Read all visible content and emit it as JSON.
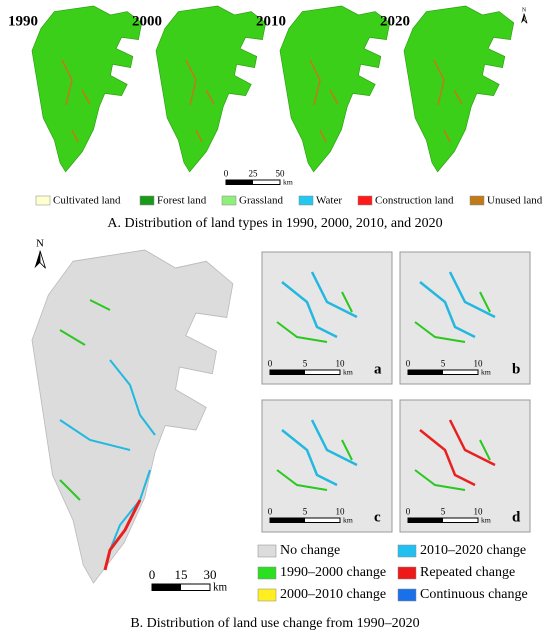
{
  "panel_a": {
    "years": [
      "1990",
      "2000",
      "2010",
      "2020"
    ],
    "north": "N",
    "scale": {
      "ticks": [
        0,
        25,
        50
      ],
      "unit": "km"
    },
    "legend": [
      "Cultivated land",
      "Forest land",
      "Grassland",
      "Water",
      "Construction land",
      "Unused land"
    ],
    "caption": "A. Distribution of land types in 1990, 2000, 2010, and 2020"
  },
  "panel_b": {
    "north": "N",
    "scale": {
      "ticks": [
        0,
        15,
        30
      ],
      "unit": "km"
    },
    "insets": [
      "a",
      "b",
      "c",
      "d"
    ],
    "inset_scale": {
      "ticks": [
        0,
        5,
        10
      ],
      "unit": "km"
    },
    "legend": [
      "No change",
      "2010–2020 change",
      "1990–2000 change",
      "Repeated change",
      "2000–2010 change",
      "Continuous change"
    ],
    "caption": "B. Distribution of land use change  from 1990–2020"
  }
}
